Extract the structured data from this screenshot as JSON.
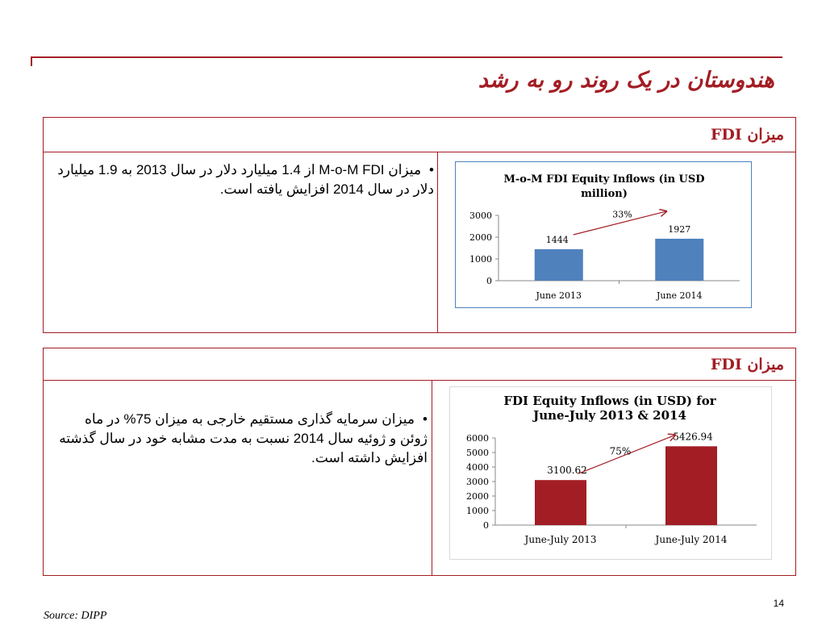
{
  "slide": {
    "title": "هندوستان در یک روند رو به رشد",
    "page_number": "14",
    "source": "Source: DIPP"
  },
  "panel1": {
    "header": "میزان FDI",
    "bullet": "میزان M-o-M FDI از 1.4 میلیارد دلار در سال 2013 به 1.9 میلیارد دلار در سال 2014 افزایش یافته است."
  },
  "panel2": {
    "header": "میزان FDI",
    "bullet": "میزان سرمایه گذاری مستقیم خارجی به میزان 75% در ماه ژوئن و ژوئیه سال 2014 نسبت به مدت مشابه خود در سال گذشته افزایش داشته است."
  },
  "chart_data": [
    {
      "type": "bar",
      "title_lines": [
        "M-o-M FDI Equity Inflows (in USD",
        "million)"
      ],
      "categories": [
        "June 2013",
        "June 2014"
      ],
      "values": [
        1444,
        1927
      ],
      "data_labels": [
        "1444",
        "1927"
      ],
      "yticks": [
        "0",
        "1000",
        "2000",
        "3000"
      ],
      "ylim": [
        0,
        3000
      ],
      "bar_color": "#4f81bd",
      "border_color": "#4f81bd",
      "growth_label": "33%",
      "arrow_color": "#a31d24",
      "grid": false,
      "legend": "none"
    },
    {
      "type": "bar",
      "title_lines": [
        "FDI Equity Inflows (in USD) for",
        "June-July 2013 & 2014"
      ],
      "categories": [
        "June-July 2013",
        "June-July 2014"
      ],
      "values": [
        3100.62,
        5426.94
      ],
      "data_labels": [
        "3100.62",
        "5426.94"
      ],
      "yticks": [
        "0",
        "1000",
        "2000",
        "3000",
        "4000",
        "5000",
        "6000"
      ],
      "ylim": [
        0,
        6000
      ],
      "bar_color": "#a31d24",
      "border_color": "#d9d9d9",
      "growth_label": "75%",
      "arrow_color": "#a31d24",
      "grid": false,
      "legend": "none"
    }
  ]
}
